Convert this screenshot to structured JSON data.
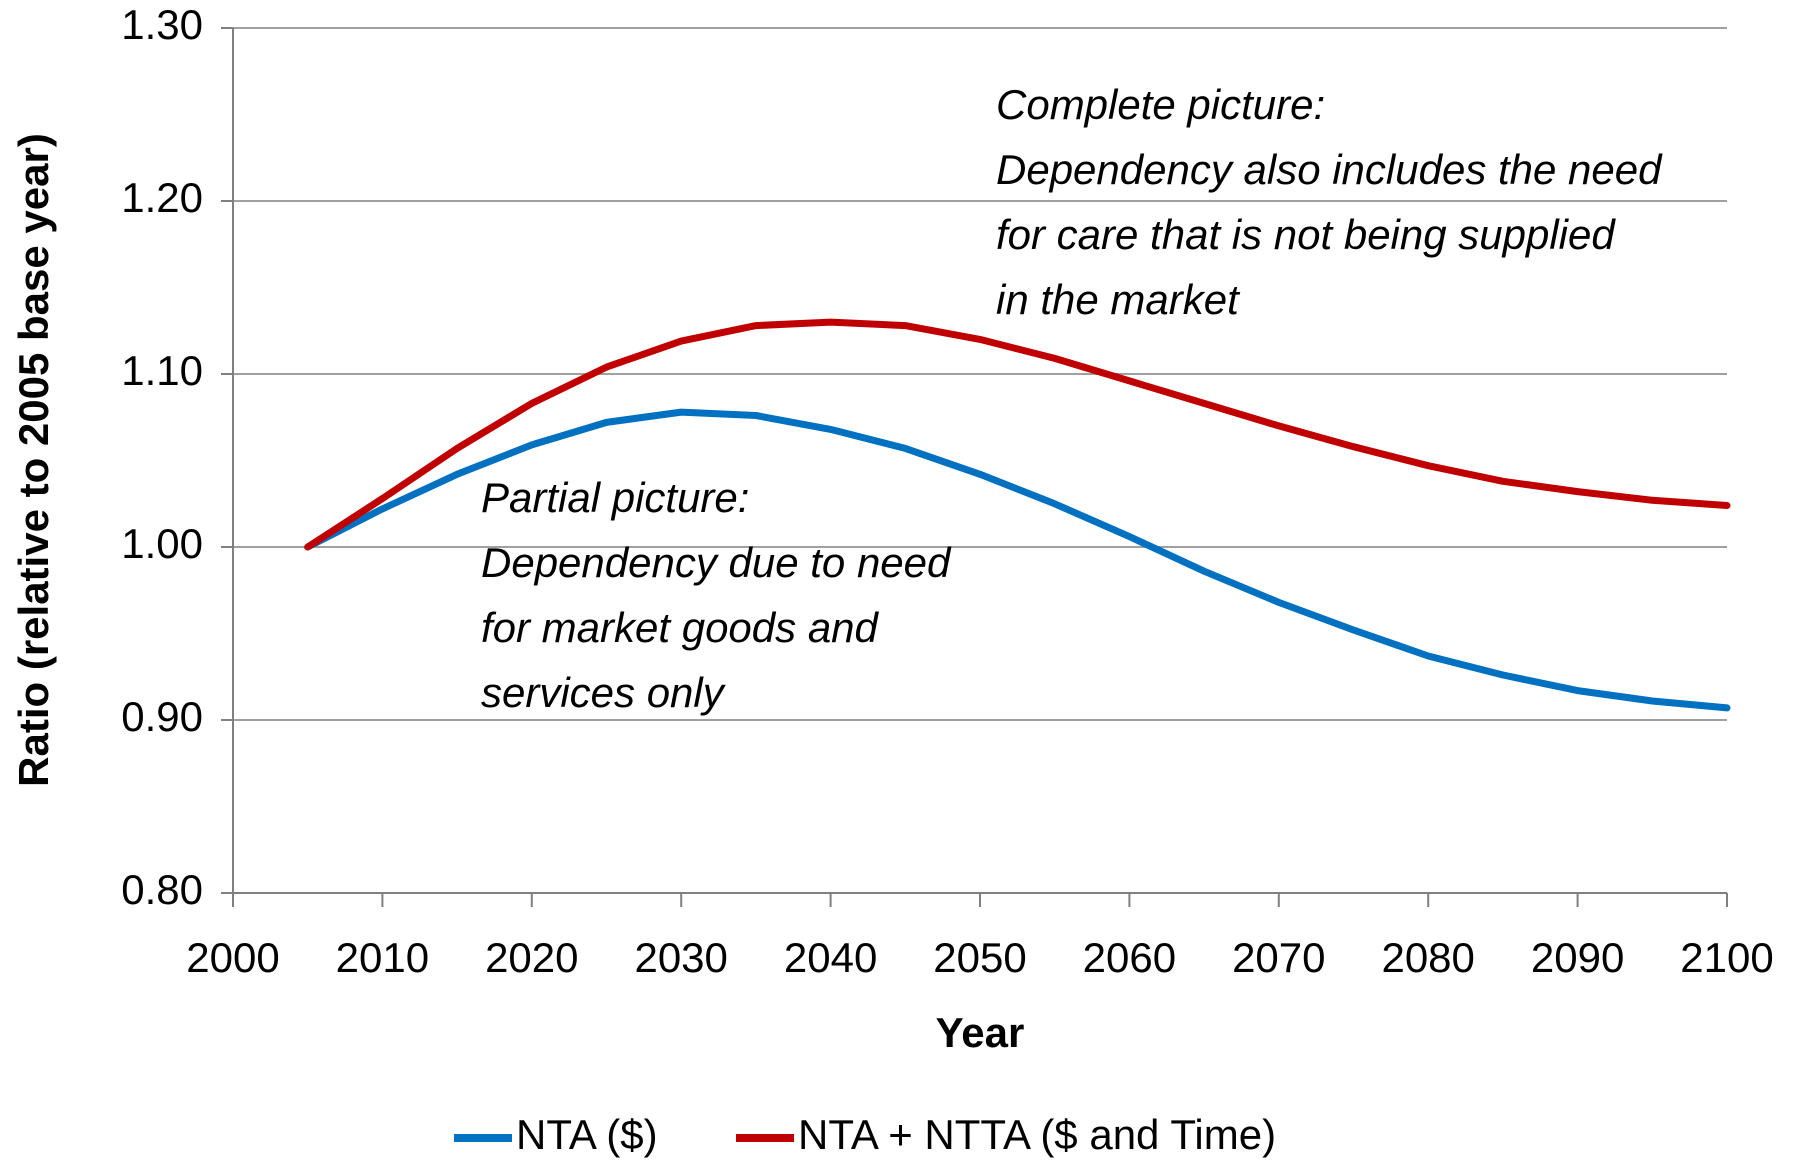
{
  "chart_data": {
    "type": "line",
    "x_label": "Year",
    "y_label": "Ratio (relative to 2005 base year)",
    "x": [
      2005,
      2010,
      2015,
      2020,
      2025,
      2030,
      2035,
      2040,
      2045,
      2050,
      2055,
      2060,
      2065,
      2070,
      2075,
      2080,
      2085,
      2090,
      2095,
      2100
    ],
    "series": [
      {
        "name": "NTA ($)",
        "color": "#0070c0",
        "values": [
          1.0,
          1.022,
          1.042,
          1.059,
          1.072,
          1.078,
          1.076,
          1.068,
          1.057,
          1.042,
          1.025,
          1.006,
          0.986,
          0.968,
          0.952,
          0.937,
          0.926,
          0.917,
          0.911,
          0.907
        ]
      },
      {
        "name": "NTA + NTTA ($ and Time)",
        "color": "#c00000",
        "values": [
          1.0,
          1.028,
          1.057,
          1.083,
          1.104,
          1.119,
          1.128,
          1.13,
          1.128,
          1.12,
          1.109,
          1.096,
          1.083,
          1.07,
          1.058,
          1.047,
          1.038,
          1.032,
          1.027,
          1.024
        ]
      }
    ],
    "xlim": [
      2000,
      2100
    ],
    "xticks": [
      2000,
      2010,
      2020,
      2030,
      2040,
      2050,
      2060,
      2070,
      2080,
      2090,
      2100
    ],
    "ylim": [
      0.8,
      1.3
    ],
    "yticks": [
      {
        "value": 0.8,
        "label": "0.80"
      },
      {
        "value": 0.9,
        "label": "0.90"
      },
      {
        "value": 1.0,
        "label": "1.00"
      },
      {
        "value": 1.1,
        "label": "1.10"
      },
      {
        "value": 1.2,
        "label": "1.20"
      },
      {
        "value": 1.3,
        "label": "1.30"
      }
    ],
    "grid": true,
    "legend": "bottom",
    "annotations": [
      {
        "lines": [
          "Complete picture:",
          "Dependency also includes the need",
          "for care that is not being supplied",
          "in the market"
        ]
      },
      {
        "lines": [
          "Partial picture:",
          "Dependency due to need",
          "for market goods and",
          "services only"
        ]
      }
    ]
  }
}
